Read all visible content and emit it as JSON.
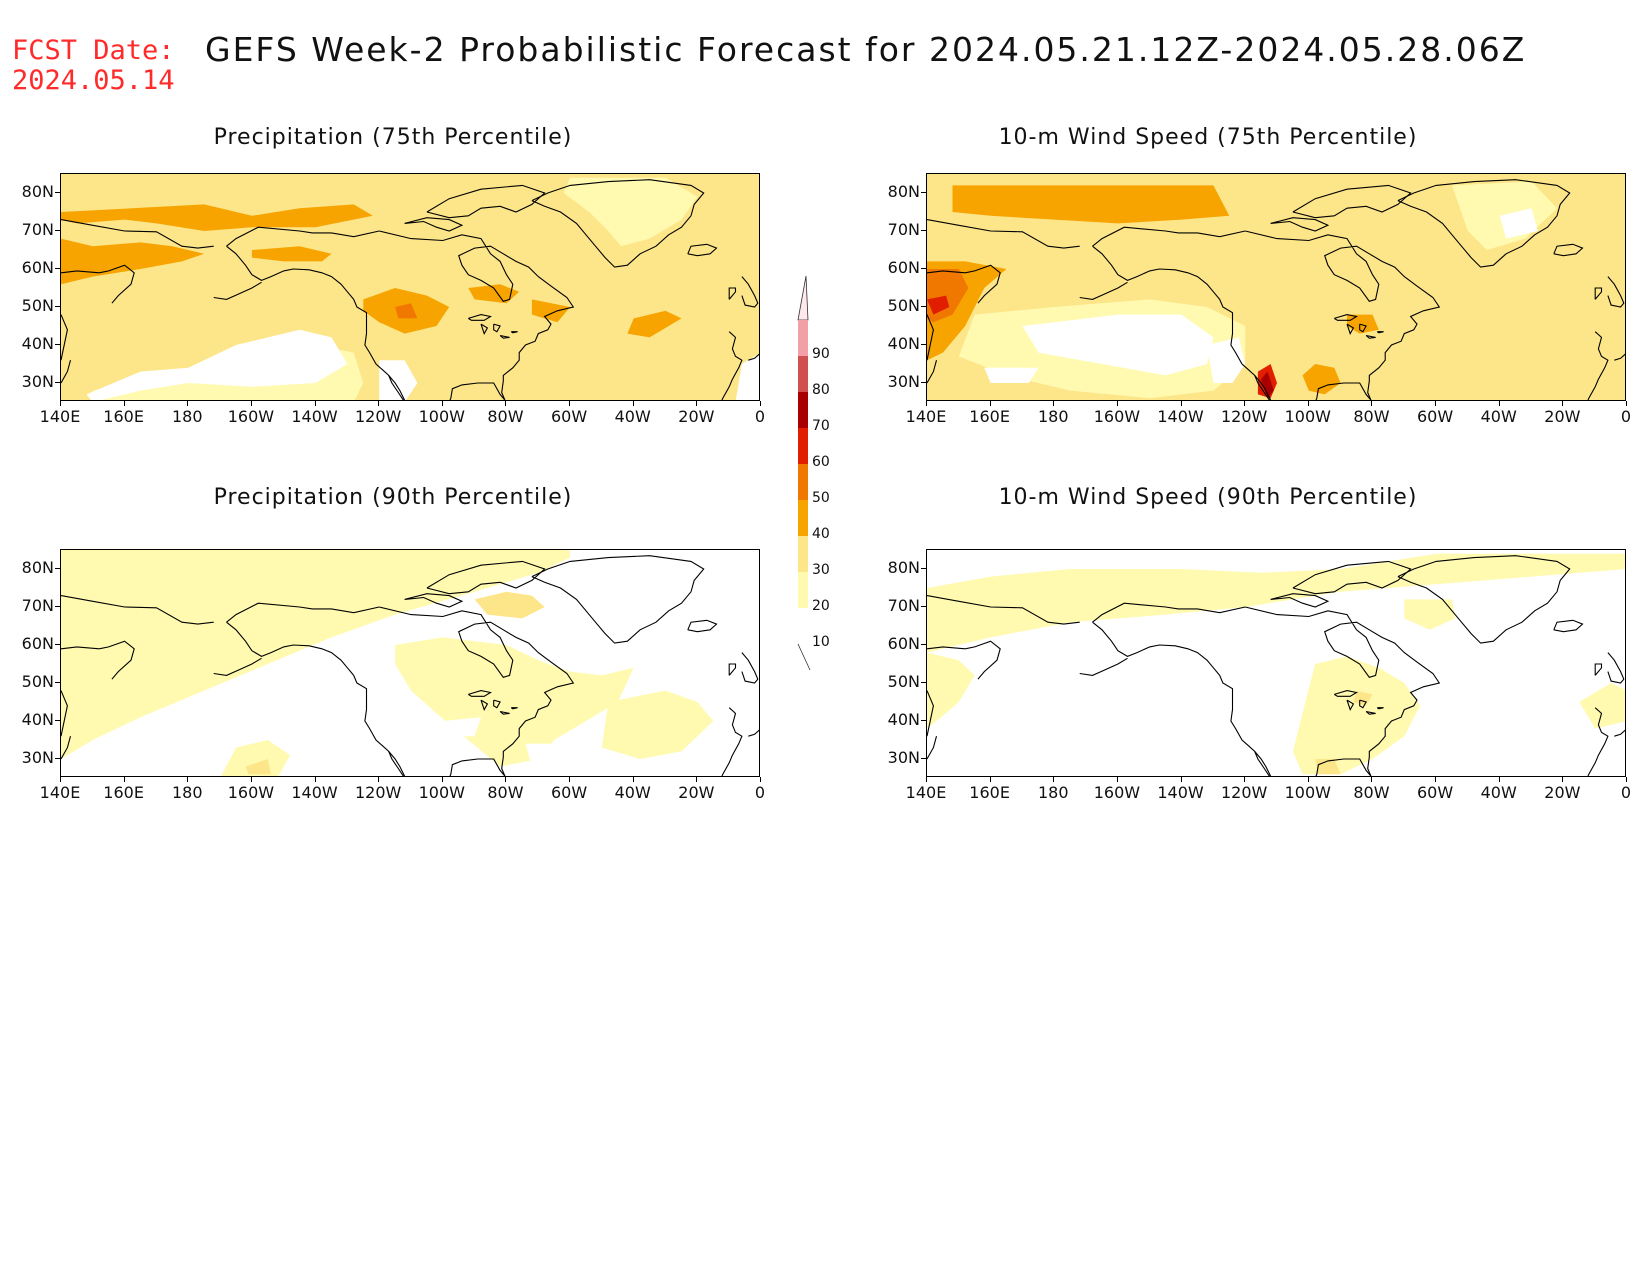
{
  "header": {
    "fcst_line1": "FCST Date:",
    "fcst_line2": "2024.05.14",
    "title": "GEFS Week-2 Probabilistic Forecast for 2024.05.21.12Z-2024.05.28.06Z"
  },
  "panels": [
    {
      "id": "precip75",
      "title": "Precipitation (75th Percentile)"
    },
    {
      "id": "wind75",
      "title": "10-m Wind Speed (75th Percentile)"
    },
    {
      "id": "precip90",
      "title": "Precipitation (90th Percentile)"
    },
    {
      "id": "wind90",
      "title": "10-m Wind Speed (90th Percentile)"
    }
  ],
  "lat_labels": [
    "80N",
    "70N",
    "60N",
    "50N",
    "40N",
    "30N"
  ],
  "lon_labels": [
    "140E",
    "160E",
    "180",
    "160W",
    "140W",
    "120W",
    "100W",
    "80W",
    "60W",
    "40W",
    "20W",
    "0"
  ],
  "colorbar": {
    "levels": [
      "10",
      "20",
      "30",
      "40",
      "50",
      "60",
      "70",
      "80",
      "90"
    ],
    "colors": [
      "#fffab0",
      "#fde68a",
      "#f7a400",
      "#f07800",
      "#e21e00",
      "#a80000",
      "#d05050",
      "#f2a0a8",
      "#ffe8ec"
    ]
  }
}
